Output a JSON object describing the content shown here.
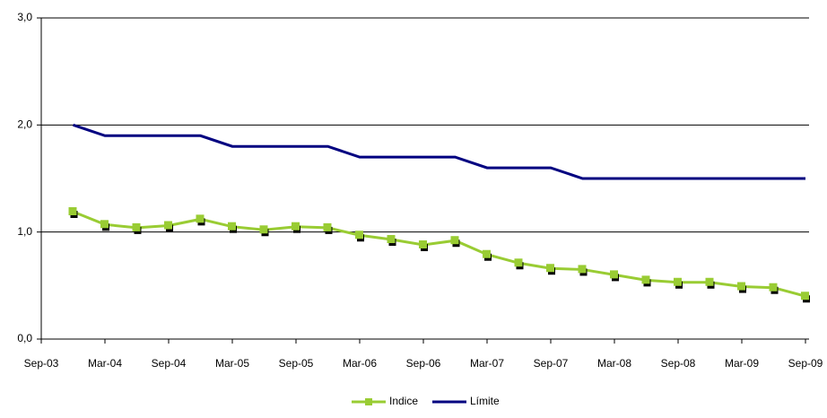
{
  "chart_data": {
    "type": "line",
    "x": [
      "Dec-03",
      "Mar-04",
      "Jun-04",
      "Sep-04",
      "Dec-04",
      "Mar-05",
      "Jun-05",
      "Sep-05",
      "Dec-05",
      "Mar-06",
      "Jun-06",
      "Sep-06",
      "Dec-06",
      "Mar-07",
      "Jun-07",
      "Sep-07",
      "Dec-07",
      "Mar-08",
      "Jun-08",
      "Sep-08",
      "Dec-08",
      "Mar-09",
      "Jun-09",
      "Sep-09"
    ],
    "series": [
      {
        "name": "Indice",
        "color": "#99cc33",
        "marker": "square",
        "values": [
          1.19,
          1.07,
          1.04,
          1.06,
          1.12,
          1.05,
          1.02,
          1.05,
          1.04,
          0.97,
          0.93,
          0.88,
          0.92,
          0.79,
          0.71,
          0.66,
          0.65,
          0.6,
          0.55,
          0.53,
          0.53,
          0.49,
          0.48,
          0.4
        ]
      },
      {
        "name": "Límite",
        "color": "#000080",
        "values": [
          2.0,
          1.9,
          1.9,
          1.9,
          1.9,
          1.8,
          1.8,
          1.8,
          1.8,
          1.7,
          1.7,
          1.7,
          1.7,
          1.6,
          1.6,
          1.6,
          1.5,
          1.5,
          1.5,
          1.5,
          1.5,
          1.5,
          1.5,
          1.5
        ]
      }
    ],
    "xlim": [
      "Sep-03",
      "Sep-09"
    ],
    "xticks": [
      "Sep-03",
      "Mar-04",
      "Sep-04",
      "Mar-05",
      "Sep-05",
      "Mar-06",
      "Sep-06",
      "Mar-07",
      "Sep-07",
      "Mar-08",
      "Sep-08",
      "Mar-09",
      "Sep-09"
    ],
    "ylim": [
      0,
      3
    ],
    "yticks": [
      {
        "value": 0,
        "label": "0,0"
      },
      {
        "value": 1,
        "label": "1,0"
      },
      {
        "value": 2,
        "label": "2,0"
      },
      {
        "value": 3,
        "label": "3,0"
      }
    ],
    "grid": true,
    "legend": "bottom"
  }
}
